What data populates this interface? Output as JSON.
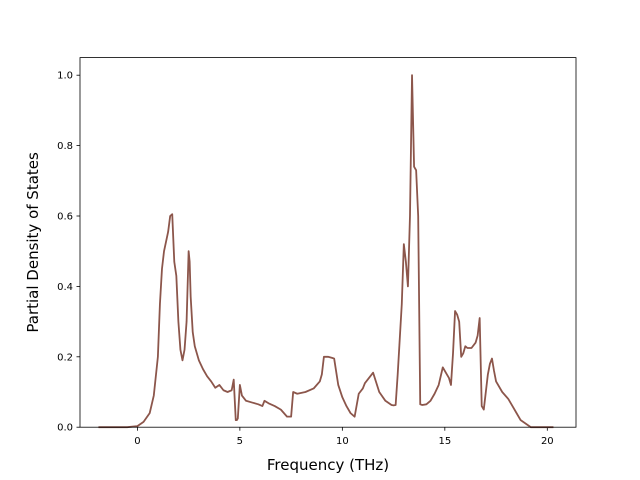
{
  "chart_data": {
    "type": "line",
    "title": "",
    "xlabel": "Frequency (THz)",
    "ylabel": "Partial Density of States",
    "xlim": [
      -2.8,
      21.4
    ],
    "ylim": [
      0.0,
      1.05
    ],
    "xticks": [
      0,
      5,
      10,
      15,
      20
    ],
    "xtick_labels": [
      "0",
      "5",
      "10",
      "15",
      "20"
    ],
    "yticks": [
      0.0,
      0.2,
      0.4,
      0.6,
      0.8,
      1.0
    ],
    "ytick_labels": [
      "0.0",
      "0.2",
      "0.4",
      "0.6",
      "0.8",
      "1.0"
    ],
    "grid": false,
    "legend": "none",
    "series": [
      {
        "color": "#8c564b",
        "x": [
          -1.9,
          -0.5,
          0.0,
          0.3,
          0.6,
          0.8,
          1.0,
          1.1,
          1.2,
          1.3,
          1.5,
          1.6,
          1.7,
          1.8,
          1.9,
          2.0,
          2.1,
          2.2,
          2.3,
          2.4,
          2.5,
          2.55,
          2.6,
          2.7,
          2.8,
          3.0,
          3.2,
          3.4,
          3.6,
          3.8,
          4.0,
          4.2,
          4.4,
          4.6,
          4.7,
          4.8,
          4.85,
          4.9,
          5.0,
          5.1,
          5.3,
          5.6,
          5.9,
          6.1,
          6.2,
          6.4,
          6.7,
          7.0,
          7.3,
          7.5,
          7.6,
          7.8,
          8.2,
          8.6,
          8.9,
          9.0,
          9.1,
          9.3,
          9.5,
          9.6,
          9.8,
          10.0,
          10.2,
          10.4,
          10.6,
          10.8,
          11.0,
          11.1,
          11.3,
          11.5,
          11.8,
          12.1,
          12.4,
          12.5,
          12.6,
          12.7,
          12.8,
          12.9,
          13.0,
          13.1,
          13.2,
          13.3,
          13.4,
          13.5,
          13.6,
          13.7,
          13.8,
          13.9,
          14.1,
          14.3,
          14.5,
          14.7,
          14.9,
          15.1,
          15.2,
          15.3,
          15.4,
          15.5,
          15.6,
          15.7,
          15.8,
          15.85,
          15.9,
          16.0,
          16.1,
          16.3,
          16.5,
          16.6,
          16.7,
          16.8,
          16.9,
          17.0,
          17.1,
          17.2,
          17.3,
          17.4,
          17.5,
          17.8,
          18.1,
          18.3,
          18.5,
          18.7,
          19.2,
          19.8,
          20.3
        ],
        "y": [
          0.0,
          0.0,
          0.003,
          0.015,
          0.04,
          0.09,
          0.2,
          0.35,
          0.45,
          0.5,
          0.555,
          0.6,
          0.605,
          0.47,
          0.43,
          0.3,
          0.22,
          0.19,
          0.22,
          0.3,
          0.5,
          0.47,
          0.37,
          0.27,
          0.23,
          0.19,
          0.165,
          0.145,
          0.13,
          0.112,
          0.12,
          0.105,
          0.1,
          0.105,
          0.135,
          0.02,
          0.02,
          0.025,
          0.12,
          0.09,
          0.075,
          0.07,
          0.065,
          0.06,
          0.075,
          0.068,
          0.06,
          0.05,
          0.03,
          0.03,
          0.1,
          0.095,
          0.1,
          0.11,
          0.13,
          0.15,
          0.2,
          0.2,
          0.197,
          0.195,
          0.12,
          0.085,
          0.06,
          0.04,
          0.03,
          0.095,
          0.11,
          0.125,
          0.14,
          0.155,
          0.1,
          0.075,
          0.063,
          0.062,
          0.063,
          0.15,
          0.25,
          0.35,
          0.52,
          0.47,
          0.4,
          0.6,
          1.0,
          0.74,
          0.73,
          0.6,
          0.065,
          0.063,
          0.065,
          0.075,
          0.095,
          0.12,
          0.17,
          0.15,
          0.14,
          0.12,
          0.21,
          0.33,
          0.32,
          0.3,
          0.2,
          0.205,
          0.21,
          0.23,
          0.225,
          0.225,
          0.24,
          0.26,
          0.31,
          0.06,
          0.05,
          0.1,
          0.15,
          0.18,
          0.195,
          0.16,
          0.13,
          0.1,
          0.08,
          0.06,
          0.04,
          0.02,
          0.0,
          0.0,
          0.0
        ]
      }
    ]
  }
}
